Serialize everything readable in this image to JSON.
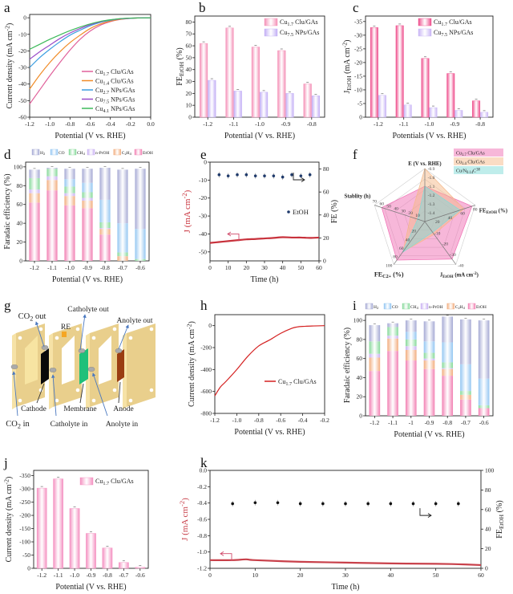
{
  "panels": [
    "a",
    "b",
    "c",
    "d",
    "e",
    "f",
    "g",
    "h",
    "i",
    "j",
    "k"
  ],
  "chart_data": [
    {
      "id": "a",
      "type": "line",
      "xlabel": "Potential (V vs. RHE)",
      "ylabel": "Current density (mA cm^{-2})",
      "xlim": [
        -1.2,
        0
      ],
      "ylim": [
        -60,
        2
      ],
      "xticks": [
        "-1.2",
        "-1.0",
        "-0.8",
        "-0.6",
        "-0.4",
        "-0.2",
        "0.0"
      ],
      "yticks": [
        "0",
        "-10",
        "-20",
        "-30",
        "-40",
        "-50",
        "-60"
      ],
      "legend": "bottom-right",
      "x": [
        -1.2,
        -1.1,
        -1.0,
        -0.9,
        -0.8,
        -0.7,
        -0.6,
        -0.5,
        -0.4,
        -0.3,
        -0.2,
        -0.1,
        0
      ],
      "series": [
        {
          "name": "Cu_{1.7} Clu/GAs",
          "color": "#e0609a",
          "values": [
            -52,
            -43.5,
            -35,
            -27,
            -19.5,
            -13,
            -8,
            -4.5,
            -2.3,
            -1,
            -0.4,
            -0.1,
            0
          ]
        },
        {
          "name": "Cu_{1.4} Clu/GAs",
          "color": "#f08c28",
          "values": [
            -43,
            -34.5,
            -27,
            -20.5,
            -15,
            -10.5,
            -6.5,
            -3.8,
            -2,
            -0.9,
            -0.3,
            -0.1,
            0
          ]
        },
        {
          "name": "Cu_{2.7} NPs/GAs",
          "color": "#3c9ee0",
          "values": [
            -30,
            -24,
            -19,
            -14.5,
            -10.5,
            -7.5,
            -4.8,
            -2.8,
            -1.5,
            -0.7,
            -0.3,
            -0.1,
            0
          ]
        },
        {
          "name": "Cu_{7.5} NPs/GAs",
          "color": "#9a4cc8",
          "values": [
            -25,
            -20.5,
            -16.5,
            -12.5,
            -9.2,
            -6.5,
            -4.2,
            -2.5,
            -1.3,
            -0.6,
            -0.2,
            -0.1,
            0
          ]
        },
        {
          "name": "Cu_{4.1} NPs/GAs",
          "color": "#3cba5a",
          "values": [
            -19,
            -16,
            -13,
            -10.3,
            -7.8,
            -5.6,
            -3.7,
            -2.2,
            -1.2,
            -0.5,
            -0.2,
            -0.1,
            0
          ]
        }
      ]
    },
    {
      "id": "b",
      "type": "bar",
      "xlabel": "Potential (V vs. RHE)",
      "ylabel": "FE_{EtOH} (%)",
      "categories": [
        "-1.2",
        "-1.1",
        "-1.0",
        "-0.9",
        "-0.8"
      ],
      "ylim": [
        0,
        85
      ],
      "yticks": [
        "0",
        "10",
        "20",
        "30",
        "40",
        "50",
        "60",
        "70",
        "80"
      ],
      "legend": "top-right",
      "series": [
        {
          "name": "Cu_{1.7} Clu/GAs",
          "color": "#f48fb6",
          "values": [
            62,
            75,
            59,
            56,
            28
          ]
        },
        {
          "name": "Cu_{7.5} NPs/GAs",
          "color": "#c2aef5",
          "values": [
            31,
            22,
            21,
            20,
            18
          ]
        }
      ]
    },
    {
      "id": "c",
      "type": "bar",
      "xlabel": "Potentials (V vs. RHE)",
      "ylabel": "J_{EtOH} (mA cm^{-2})",
      "categories": [
        "-1.2",
        "-1.1",
        "-1.0",
        "-0.9",
        "-0.8"
      ],
      "ylim": [
        0,
        -37
      ],
      "yticks": [
        "-35",
        "-30",
        "-25",
        "-20",
        "-15",
        "-10",
        "-5",
        "0"
      ],
      "legend": "top-right",
      "series": [
        {
          "name": "Cu_{1.7} Clu/GAs",
          "color": "#ee4b8a",
          "values": [
            -32.8,
            -33.5,
            -21.5,
            -16,
            -6
          ]
        },
        {
          "name": "Cu_{7.5} NPs/GAs",
          "color": "#c8b4f5",
          "values": [
            -8,
            -4.5,
            -3.5,
            -2.5,
            -1.8
          ]
        }
      ]
    },
    {
      "id": "d",
      "type": "stacked-bar",
      "xlabel": "Potential (V vs. RHE)",
      "ylabel": "Faradaic efficiency (%)",
      "categories": [
        "-1.2",
        "-1.1",
        "-1.0",
        "-0.9",
        "-0.8",
        "-0.7",
        "-0.6"
      ],
      "ylim": [
        0,
        105
      ],
      "yticks": [
        "0",
        "20",
        "40",
        "60",
        "80",
        "100"
      ],
      "legend": "top",
      "components": [
        {
          "name": "EtOH",
          "color": "#f27fb2",
          "values": [
            62,
            75,
            59,
            56,
            28,
            0,
            0
          ]
        },
        {
          "name": "C_{2}H_{4}",
          "color": "#f2ad7e",
          "values": [
            10,
            11,
            10,
            8,
            6,
            5,
            0
          ]
        },
        {
          "name": "n-PrOH",
          "color": "#c9b0f2",
          "values": [
            4,
            4,
            3,
            3,
            1,
            0,
            0
          ]
        },
        {
          "name": "CH_{4}",
          "color": "#86d99a",
          "values": [
            12,
            8,
            7,
            6,
            6,
            4,
            2
          ]
        },
        {
          "name": "CO",
          "color": "#93c6f2",
          "values": [
            0,
            0,
            8,
            10,
            24,
            31,
            32
          ]
        },
        {
          "name": "H_{2}",
          "color": "#a5a9d4",
          "values": [
            9,
            1,
            11,
            15,
            34,
            57,
            64
          ]
        }
      ]
    },
    {
      "id": "e",
      "type": "dual-axis",
      "xlabel": "Time (h)",
      "ylabel": "J (mA cm^{-2})",
      "y2label": "FE (%)",
      "xlim": [
        0,
        60
      ],
      "xticks": [
        "0",
        "10",
        "20",
        "30",
        "40",
        "50",
        "60"
      ],
      "ylim": [
        -55,
        0
      ],
      "yticks": [
        "0",
        "-10",
        "-20",
        "-30",
        "-40",
        "-50"
      ],
      "y2lim": [
        0,
        86
      ],
      "y2ticks": [
        "0",
        "20",
        "40",
        "60",
        "80"
      ],
      "line": {
        "color": "#c8323c",
        "x": [
          0,
          5,
          10,
          15,
          20,
          25,
          30,
          35,
          40,
          45,
          50,
          55,
          60
        ],
        "y": [
          -45,
          -44.5,
          -44,
          -43.5,
          -43,
          -42.8,
          -42.5,
          -42.2,
          -41.8,
          -42,
          -42,
          -42.2,
          -42
        ]
      },
      "points": {
        "name": "EtOH",
        "color": "#1f3a6b",
        "x": [
          5,
          10,
          15,
          20,
          25,
          30,
          35,
          40,
          45,
          50,
          55
        ],
        "y": [
          75,
          74,
          75,
          75,
          74,
          74,
          74,
          73,
          75,
          74,
          75
        ]
      }
    },
    {
      "id": "f",
      "type": "radar",
      "axes": [
        {
          "label": "E (V vs. RHE)",
          "range": [
            -1.5,
            -0.9
          ],
          "ticks": [
            "-0.9",
            "-1.0",
            "-1.1",
            "-1.2",
            "-1.3",
            "-1.4"
          ]
        },
        {
          "label": "FE_{EtOH} (%)",
          "range": [
            0,
            80
          ],
          "ticks": [
            "20",
            "40",
            "60",
            "80"
          ]
        },
        {
          "label": "J_{EtOH} (mA cm^{-2})",
          "range": [
            0,
            -40
          ],
          "ticks": [
            "-10",
            "-20",
            "-30",
            "-40"
          ]
        },
        {
          "label": "FE_{C2+} (%)",
          "range": [
            0,
            100
          ],
          "ticks": [
            "20",
            "40",
            "60",
            "80",
            "100"
          ]
        },
        {
          "label": "Stablity (h)",
          "range": [
            0,
            70
          ],
          "ticks": [
            "10",
            "20",
            "30",
            "40",
            "50",
            "60",
            "70"
          ]
        }
      ],
      "legend": "top-right",
      "series": [
        {
          "name": "Cu_{1.7} Clu/GAs",
          "color": "#f06fb4",
          "values": [
            -1.1,
            75,
            -35,
            90,
            60
          ]
        },
        {
          "name": "Cu_{1.4} Clu/GAs",
          "color": "#f5b98a",
          "values": [
            -0.9,
            62,
            -12,
            70,
            20
          ]
        },
        {
          "name": "Cu/N_{0.14}C^{38}",
          "color": "#7fdcd8",
          "values": [
            -1.1,
            56,
            -10,
            72,
            10
          ]
        }
      ]
    },
    {
      "id": "h",
      "type": "line",
      "xlabel": "Potential (V vs. RHE)",
      "ylabel": "Current density (mA cm^{-2})",
      "xlim": [
        -1.2,
        -0.2
      ],
      "ylim": [
        -800,
        100
      ],
      "xticks": [
        "-1.2",
        "-1.0",
        "-0.8",
        "-0.6",
        "-0.4",
        "-0.2"
      ],
      "yticks": [
        "0",
        "-200",
        "-400",
        "-600",
        "-800"
      ],
      "legend": "right",
      "x": [
        -1.2,
        -1.15,
        -1.1,
        -1.0,
        -0.9,
        -0.8,
        -0.7,
        -0.6,
        -0.5,
        -0.45,
        -0.4,
        -0.3,
        -0.2
      ],
      "series": [
        {
          "name": "Cu_{1.7} Clu/GAs",
          "color": "#d42020",
          "values": [
            -640,
            -560,
            -510,
            -400,
            -280,
            -185,
            -130,
            -70,
            -25,
            -12,
            -7,
            -3,
            0
          ]
        }
      ]
    },
    {
      "id": "i",
      "type": "stacked-bar",
      "xlabel": "Potential (V vs. RHE)",
      "ylabel": "Faradaic efficiency (%)",
      "categories": [
        "-1.2",
        "-1.1",
        "-1",
        "-0.9",
        "-0.8",
        "-0.7",
        "-0.6"
      ],
      "ylim": [
        0,
        106
      ],
      "yticks": [
        "0",
        "20",
        "40",
        "60",
        "80",
        "100"
      ],
      "legend": "top",
      "components": [
        {
          "name": "EtOH",
          "color": "#f27fb2",
          "values": [
            47,
            68,
            58,
            49,
            42,
            17,
            8
          ]
        },
        {
          "name": "C_{2}H_{4}",
          "color": "#f2ad7e",
          "values": [
            14,
            13,
            11,
            9,
            7,
            5,
            0
          ]
        },
        {
          "name": "n-PrOH",
          "color": "#c9b0f2",
          "values": [
            4,
            3,
            4,
            2,
            1,
            0,
            0
          ]
        },
        {
          "name": "CH_{4}",
          "color": "#86d99a",
          "values": [
            13,
            9,
            7,
            6,
            6,
            4,
            3
          ]
        },
        {
          "name": "CO",
          "color": "#93c6f2",
          "values": [
            0,
            0,
            8,
            12,
            21,
            28,
            28
          ]
        },
        {
          "name": "H_{2}",
          "color": "#a5a9d4",
          "values": [
            17,
            4,
            12,
            21,
            27,
            47,
            61
          ]
        }
      ]
    },
    {
      "id": "j",
      "type": "bar",
      "xlabel": "Potential (V vs. RHE)",
      "ylabel": "Current density (mA cm^{-2})",
      "categories": [
        "-1.2",
        "-1.1",
        "-1.0",
        "-0.9",
        "-0.8",
        "-0.7",
        "-0.6"
      ],
      "ylim": [
        0,
        -370
      ],
      "yticks": [
        "-350",
        "-300",
        "-250",
        "-200",
        "-150",
        "-100",
        "-50",
        "0"
      ],
      "legend": "top-right",
      "series": [
        {
          "name": "Cu_{1.7} Clu/GAs",
          "color": "#f48fc0",
          "values": [
            -303,
            -338,
            -226,
            -132,
            -77,
            -22,
            -4
          ]
        }
      ]
    },
    {
      "id": "k",
      "type": "dual-axis",
      "xlabel": "Time (h)",
      "ylabel": "J (mA cm^{-2})",
      "y2label": "FE_{EtOH} (%)",
      "xlim": [
        0,
        60
      ],
      "xticks": [
        "0",
        "10",
        "20",
        "30",
        "40",
        "50",
        "60"
      ],
      "ylim": [
        -1.2,
        0
      ],
      "yticks": [
        "0.0",
        "-0.2",
        "-0.4",
        "-0.6",
        "-0.8",
        "-1.0",
        "-1.2"
      ],
      "y2lim": [
        0,
        100
      ],
      "y2ticks": [
        "0",
        "20",
        "40",
        "60",
        "80",
        "100"
      ],
      "line": {
        "color": "#c8404a",
        "x": [
          0,
          5,
          8,
          10,
          20,
          30,
          40,
          50,
          55,
          60
        ],
        "y": [
          -1.1,
          -1.1,
          -1.09,
          -1.1,
          -1.12,
          -1.13,
          -1.14,
          -1.145,
          -1.15,
          -1.16
        ]
      },
      "points": {
        "color": "#111111",
        "x": [
          5,
          10,
          15,
          20,
          25,
          30,
          35,
          40,
          45,
          50,
          55
        ],
        "y": [
          66,
          67,
          67,
          66,
          66,
          66,
          66,
          66,
          66,
          66,
          66
        ]
      }
    }
  ],
  "diagram": {
    "labels": {
      "co2_out": "CO_{2} out",
      "catholyte_out": "Catholyte out",
      "re": "RE",
      "anolyte_out": "Anolyte out",
      "cathode": "Cathode",
      "membrane": "Membrane",
      "anode": "Anode",
      "co2_in": "CO_{2} in",
      "catholyte_in": "Catholyte in",
      "anolyte_in": "Anolyte in"
    },
    "colors": {
      "plate": "#e9cf8c",
      "cathode": "#0a0a0a",
      "membrane": "#1fc07a",
      "anode": "#9a3d12",
      "re": "#f5a623",
      "arrow": "#4a78c0"
    }
  }
}
